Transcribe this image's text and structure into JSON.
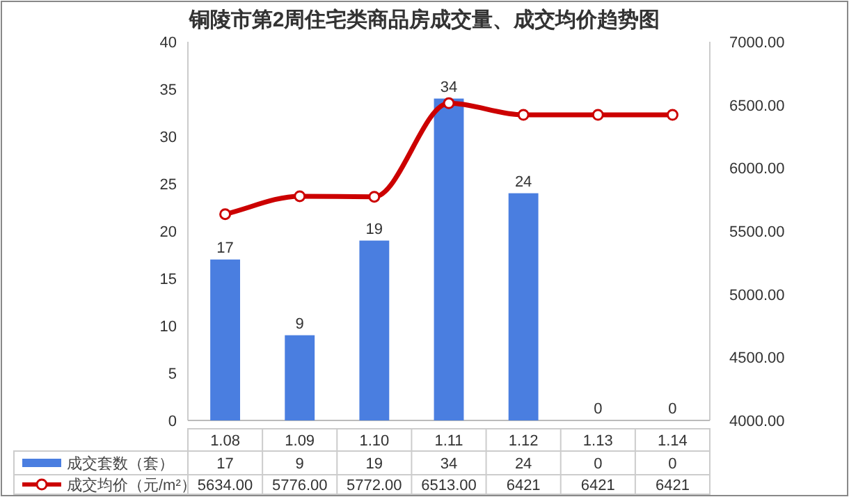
{
  "chart_data": {
    "type": "bar",
    "title": "铜陵市第2周住宅类商品房成交量、成交均价趋势图",
    "categories": [
      "1.08",
      "1.09",
      "1.10",
      "1.11",
      "1.12",
      "1.13",
      "1.14"
    ],
    "series": [
      {
        "name": "成交套数（套）",
        "color": "#4a7ee0",
        "values": [
          17,
          9,
          19,
          34,
          24,
          0,
          0
        ],
        "value_labels": [
          "17",
          "9",
          "19",
          "34",
          "24",
          "0",
          "0"
        ]
      },
      {
        "name": "成交均价（元/m²）",
        "type": "line",
        "axis": "y2",
        "color": "#cc0000",
        "marker": "circle",
        "values": [
          5634,
          5776,
          5772,
          6513,
          6421,
          6421,
          6421
        ],
        "value_labels": [
          "5634.00",
          "5776.00",
          "5772.00",
          "6513.00",
          "6421",
          "6421",
          "6421"
        ]
      }
    ],
    "ylim": [
      0,
      40
    ],
    "yticks": [
      0,
      5,
      10,
      15,
      20,
      25,
      30,
      35,
      40
    ],
    "y2lim": [
      4000,
      7000
    ],
    "y2ticks": [
      {
        "value": 4000,
        "label": "4000.00"
      },
      {
        "value": 4500,
        "label": "4500.00"
      },
      {
        "value": 5000,
        "label": "5000.00"
      },
      {
        "value": 5500,
        "label": "5500.00"
      },
      {
        "value": 6000,
        "label": "6000.00"
      },
      {
        "value": 6500,
        "label": "6500.00"
      },
      {
        "value": 7000,
        "label": "7000.00"
      }
    ],
    "grid": false,
    "legend": "bottom left"
  }
}
